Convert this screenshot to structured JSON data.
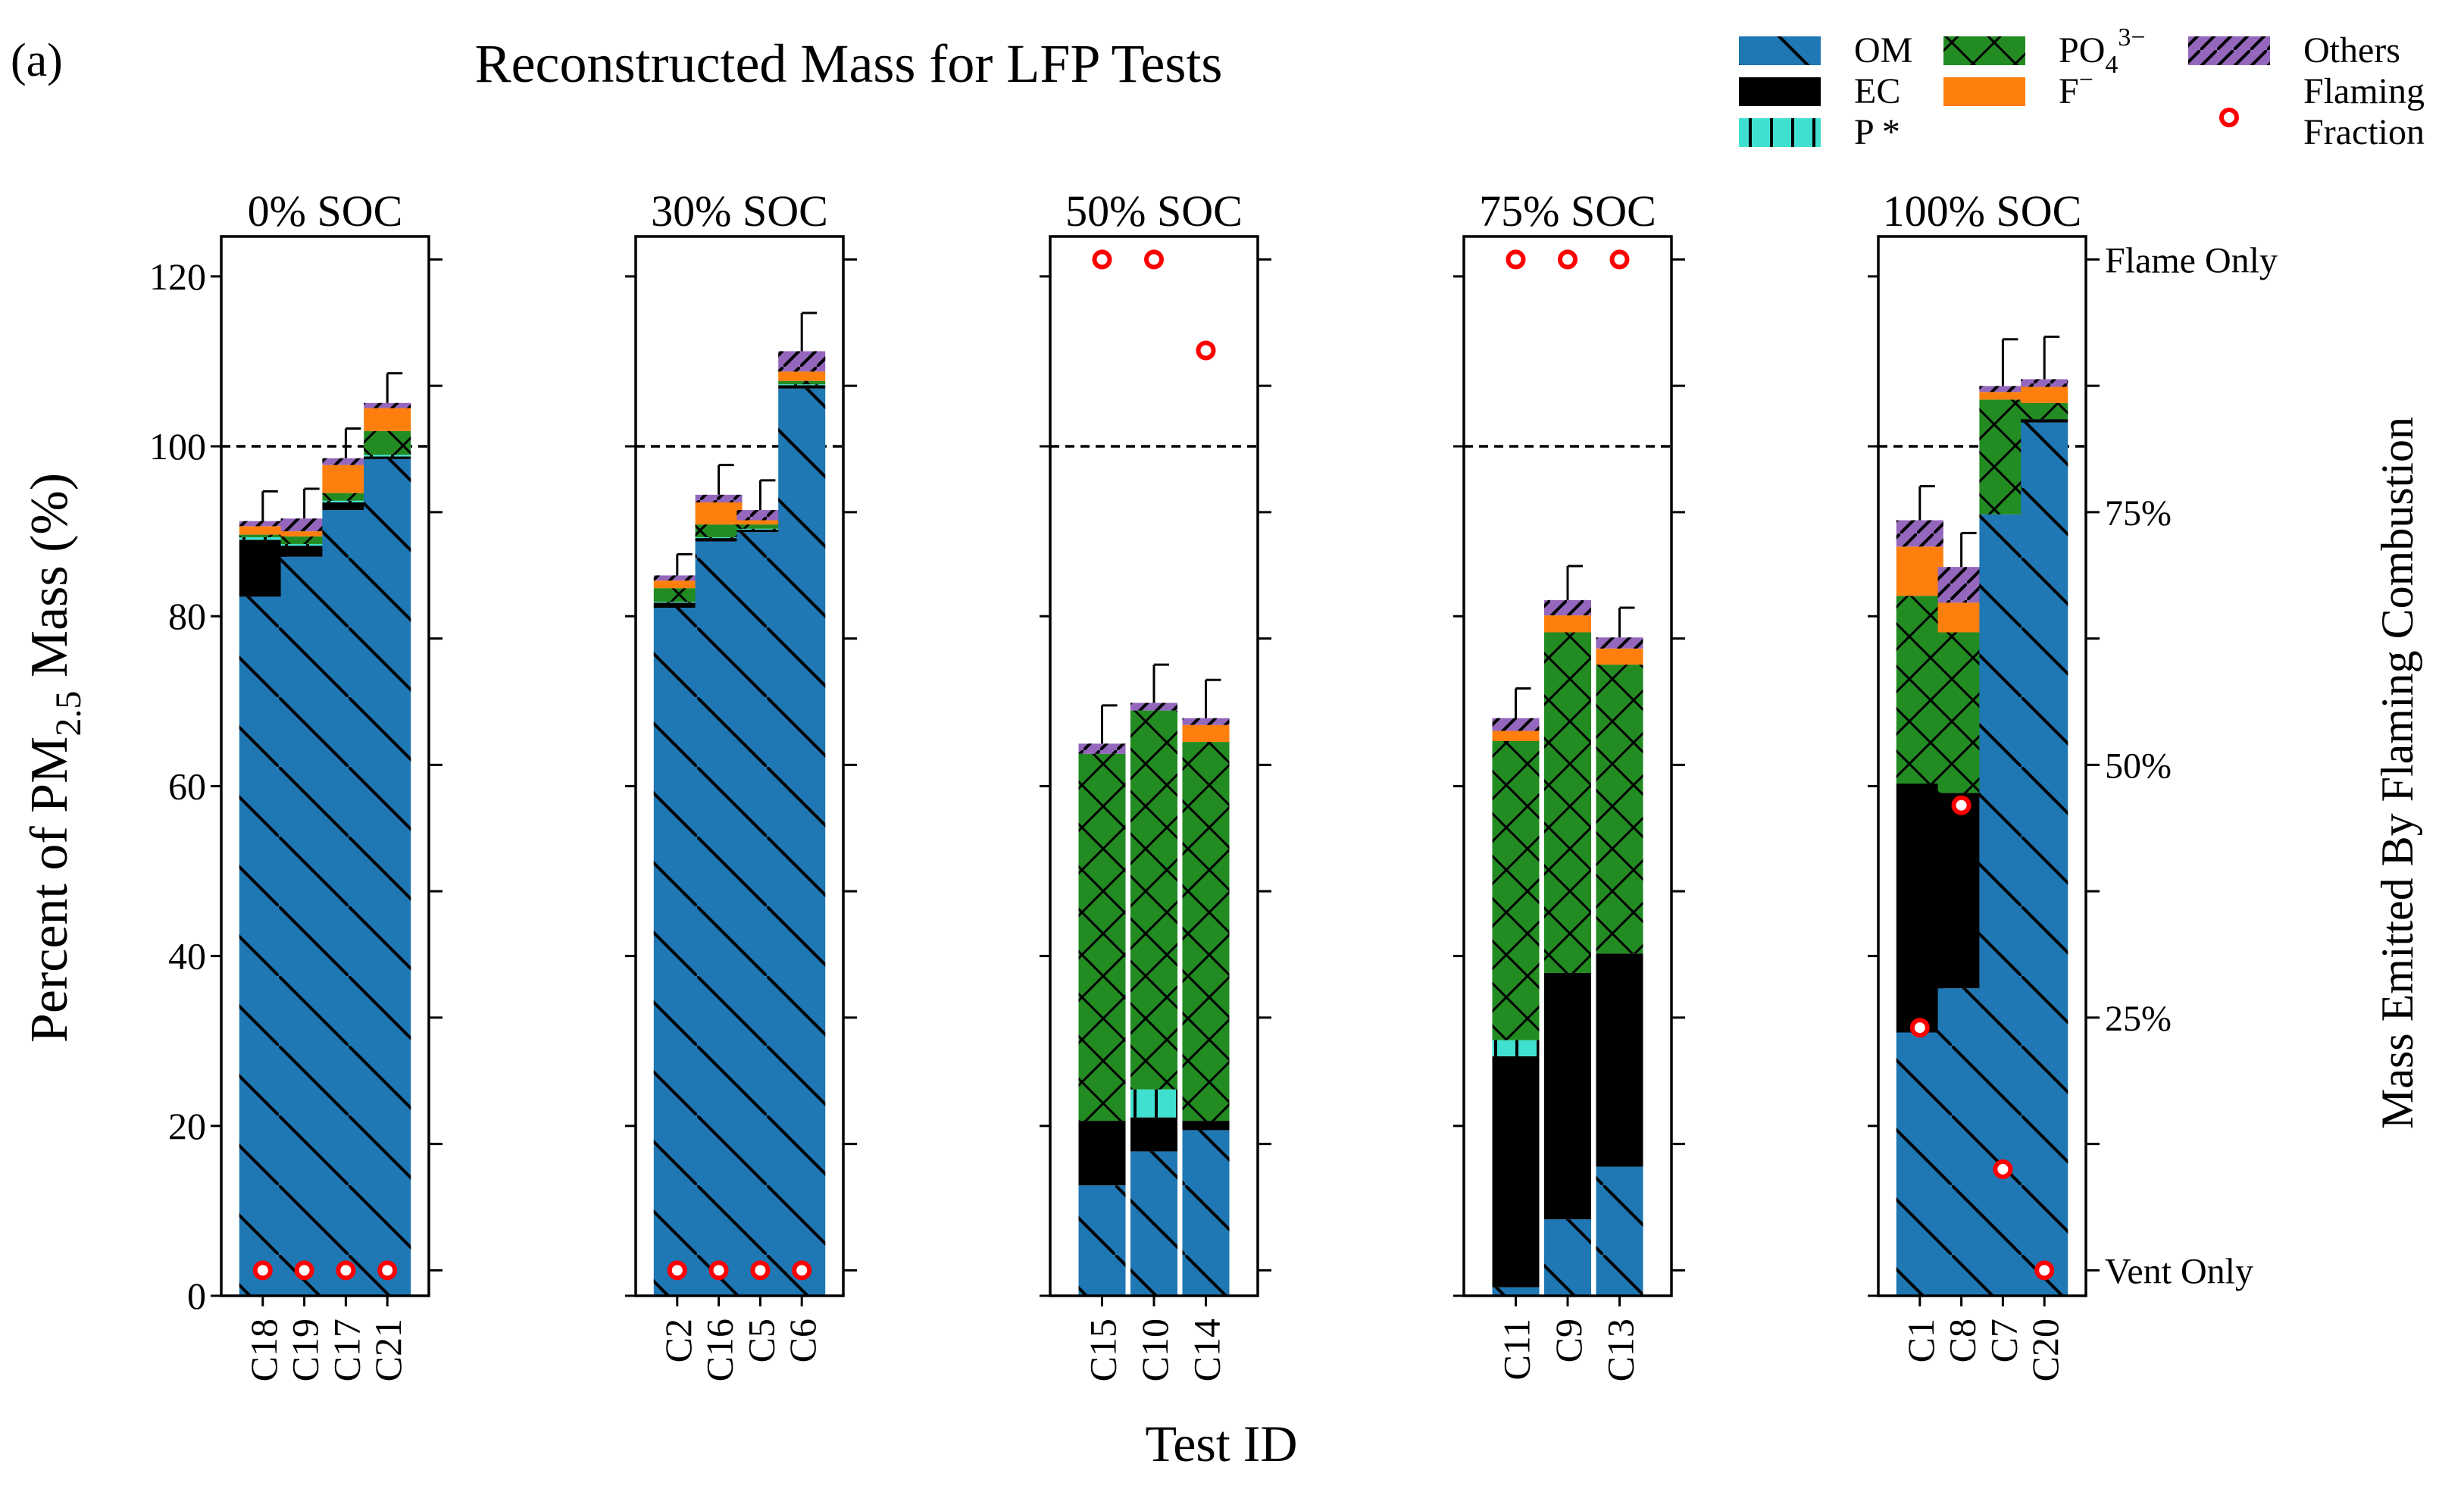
{
  "figure": {
    "panel_label": "(a)",
    "title": "Reconstructed Mass for LFP Tests",
    "xlabel": "Test ID",
    "ylabel_main": "Percent of PM",
    "ylabel_sub": "2.5",
    "ylabel_unit": " Mass (%)",
    "right_ylabel": "Mass Emitted By Flaming Combustion"
  },
  "chart_data": {
    "type": "bar",
    "stacked": true,
    "ylim": [
      0,
      124
    ],
    "yticks": [
      0,
      20,
      40,
      60,
      80,
      100,
      120
    ],
    "reference_line": 100,
    "right_axis": {
      "label": "Mass Emitted By Flaming Combustion",
      "ticks": [
        {
          "frac": 0.0,
          "label": "Vent Only"
        },
        {
          "frac": 0.25,
          "label": "25%"
        },
        {
          "frac": 0.5,
          "label": "50%"
        },
        {
          "frac": 0.75,
          "label": "75%"
        },
        {
          "frac": 1.0,
          "label": "Flame Only"
        }
      ],
      "minor_fracs": [
        0.125,
        0.375,
        0.625,
        0.875
      ],
      "range_percent_axis": [
        3,
        122
      ]
    },
    "components": [
      {
        "key": "OM",
        "label": "OM",
        "color": "#1f77b4",
        "hatch": "back"
      },
      {
        "key": "EC",
        "label": "EC",
        "color": "#000000",
        "hatch": "none"
      },
      {
        "key": "P",
        "label": "P *",
        "color": "#40e0d0",
        "hatch": "vert"
      },
      {
        "key": "PO4",
        "label": "PO",
        "label_sub": "4",
        "label_sup": "3−",
        "color": "#228b22",
        "hatch": "cross"
      },
      {
        "key": "F",
        "label": "F",
        "label_sup": "−",
        "color": "#ff7f0e",
        "hatch": "none"
      },
      {
        "key": "Others",
        "label": "Others",
        "color": "#9467bd",
        "hatch": "fwd"
      }
    ],
    "flaming_legend": [
      "Flaming",
      "Fraction"
    ],
    "panels": [
      {
        "title": "0% SOC",
        "tests": [
          {
            "id": "C18",
            "values": {
              "OM": 82.3,
              "EC": 6.7,
              "P": 0.3,
              "PO4": 0.3,
              "F": 1.0,
              "Others": 0.6
            },
            "error": 3.5,
            "flaming": 0.0
          },
          {
            "id": "C19",
            "values": {
              "OM": 87.0,
              "EC": 1.3,
              "P": 0.2,
              "PO4": 0.9,
              "F": 0.6,
              "Others": 1.5
            },
            "error": 3.5,
            "flaming": 0.0
          },
          {
            "id": "C17",
            "values": {
              "OM": 92.5,
              "EC": 0.9,
              "P": 0.2,
              "PO4": 0.9,
              "F": 3.3,
              "Others": 0.8
            },
            "error": 3.5,
            "flaming": 0.0
          },
          {
            "id": "C21",
            "values": {
              "OM": 98.5,
              "EC": 0.3,
              "P": 0.2,
              "PO4": 2.8,
              "F": 2.7,
              "Others": 0.6
            },
            "error": 3.5,
            "flaming": 0.0
          }
        ]
      },
      {
        "title": "30% SOC",
        "tests": [
          {
            "id": "C2",
            "values": {
              "OM": 81.0,
              "EC": 0.6,
              "P": 0.1,
              "PO4": 1.6,
              "F": 0.9,
              "Others": 0.6
            },
            "error": 2.5,
            "flaming": 0.0
          },
          {
            "id": "C16",
            "values": {
              "OM": 88.8,
              "EC": 0.4,
              "P": 0.1,
              "PO4": 1.5,
              "F": 2.6,
              "Others": 0.9
            },
            "error": 3.5,
            "flaming": 0.0
          },
          {
            "id": "C5",
            "values": {
              "OM": 89.9,
              "EC": 0.3,
              "P": 0.1,
              "PO4": 0.5,
              "F": 0.5,
              "Others": 1.2
            },
            "error": 3.5,
            "flaming": 0.0
          },
          {
            "id": "C6",
            "values": {
              "OM": 106.8,
              "EC": 0.4,
              "P": 0.1,
              "PO4": 0.4,
              "F": 1.1,
              "Others": 2.4
            },
            "error": 4.5,
            "flaming": 0.0
          }
        ]
      },
      {
        "title": "50% SOC",
        "tests": [
          {
            "id": "C15",
            "values": {
              "OM": 13.0,
              "EC": 7.6,
              "P": 0.0,
              "PO4": 43.2,
              "F": 0.0,
              "Others": 1.2
            },
            "error": 4.5,
            "flaming": 1.0
          },
          {
            "id": "C10",
            "values": {
              "OM": 17.0,
              "EC": 4.0,
              "P": 3.3,
              "PO4": 44.6,
              "F": 0.0,
              "Others": 0.9
            },
            "error": 4.5,
            "flaming": 1.0
          },
          {
            "id": "C14",
            "values": {
              "OM": 19.5,
              "EC": 1.1,
              "P": 0.0,
              "PO4": 44.6,
              "F": 2.0,
              "Others": 0.8
            },
            "error": 4.5,
            "flaming": 0.91
          }
        ]
      },
      {
        "title": "75% SOC",
        "tests": [
          {
            "id": "C11",
            "values": {
              "OM": 1.0,
              "EC": 27.2,
              "P": 1.9,
              "PO4": 35.2,
              "F": 1.2,
              "Others": 1.5
            },
            "error": 3.5,
            "flaming": 1.0
          },
          {
            "id": "C9",
            "values": {
              "OM": 9.0,
              "EC": 29.0,
              "P": 0.0,
              "PO4": 40.1,
              "F": 2.0,
              "Others": 1.8
            },
            "error": 4.0,
            "flaming": 1.0
          },
          {
            "id": "C13",
            "values": {
              "OM": 15.2,
              "EC": 25.1,
              "P": 0.0,
              "PO4": 34.0,
              "F": 1.9,
              "Others": 1.3
            },
            "error": 3.5,
            "flaming": 1.0
          }
        ]
      },
      {
        "title": "100% SOC",
        "tests": [
          {
            "id": "C1",
            "values": {
              "OM": 31.0,
              "EC": 29.3,
              "P": 0.0,
              "PO4": 22.1,
              "F": 5.8,
              "Others": 3.1
            },
            "error": 4.0,
            "flaming": 0.24
          },
          {
            "id": "C8",
            "values": {
              "OM": 36.2,
              "EC": 23.0,
              "P": 0.0,
              "PO4": 18.9,
              "F": 3.5,
              "Others": 4.2
            },
            "error": 4.0,
            "flaming": 0.46
          },
          {
            "id": "C7",
            "values": {
              "OM": 92.0,
              "EC": 0.0,
              "P": 0.0,
              "PO4": 13.5,
              "F": 0.9,
              "Others": 0.7
            },
            "error": 5.5,
            "flaming": 0.1
          },
          {
            "id": "C20",
            "values": {
              "OM": 102.8,
              "EC": 0.4,
              "P": 0.0,
              "PO4": 1.9,
              "F": 1.9,
              "Others": 0.9
            },
            "error": 5.0,
            "flaming": 0.0
          }
        ]
      }
    ]
  }
}
